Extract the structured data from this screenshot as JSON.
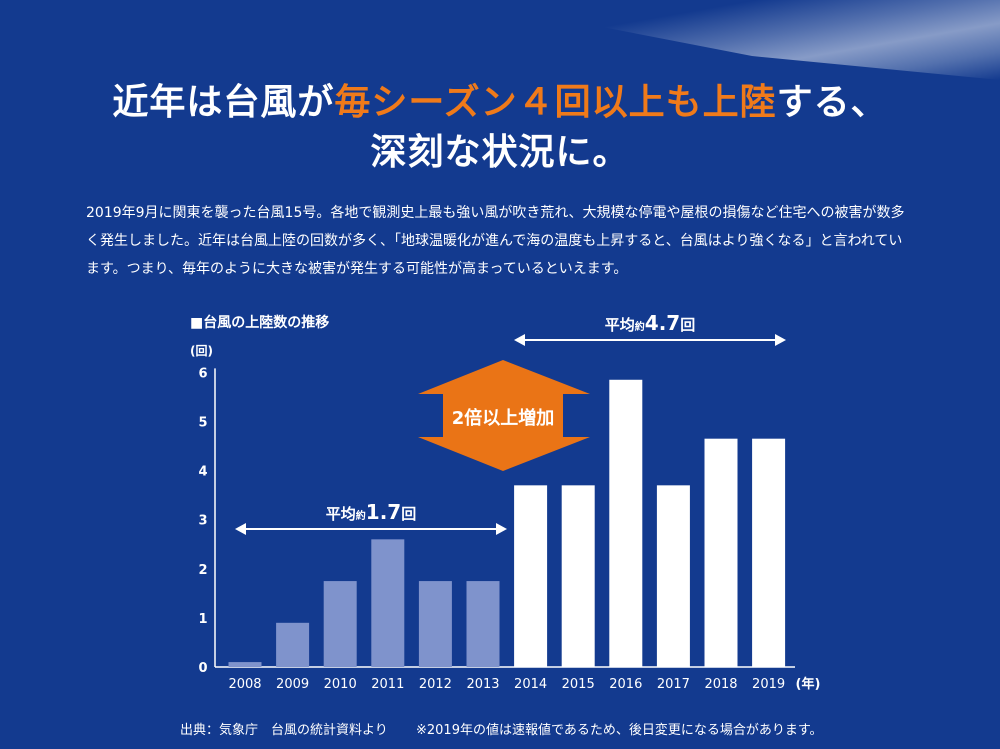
{
  "headline": {
    "line1_pre": "近年は台風が",
    "line1_highlight": "毎シーズン４回以上も上陸",
    "line1_post": "する、",
    "line2": "深刻な状況に。"
  },
  "intro": "2019年9月に関東を襲った台風15号。各地で観測史上最も強い風が吹き荒れ、大規模な停電や屋根の損傷など住宅への被害が数多く発生しました。近年は台風上陸の回数が多く、「地球温暖化が進んで海の温度も上昇すると、台風はより強くなる」と言われています。つまり、毎年のように大きな被害が発生する可能性が高まっているといえます。",
  "chart_data": {
    "type": "bar",
    "title": "■台風の上陸数の推移",
    "ylabel": "(回)",
    "xlabel": "(年)",
    "ylim": [
      0,
      6
    ],
    "yticks": [
      0,
      1,
      2,
      3,
      4,
      5,
      6
    ],
    "categories": [
      "2008",
      "2009",
      "2010",
      "2011",
      "2012",
      "2013",
      "2014",
      "2015",
      "2016",
      "2017",
      "2018",
      "2019"
    ],
    "values": [
      0.1,
      0.9,
      1.75,
      2.6,
      1.75,
      1.75,
      3.7,
      3.7,
      5.85,
      3.7,
      4.65,
      4.65
    ],
    "colors": {
      "early": "#7f93cc",
      "recent": "#ffffff",
      "accent": "#ea7416"
    },
    "annotations": {
      "early_avg": {
        "pre": "平均",
        "small": "約",
        "value": "1.7",
        "unit": "回"
      },
      "recent_avg": {
        "pre": "平均",
        "small": "約",
        "value": "4.7",
        "unit": "回"
      },
      "increase": "2倍以上増加"
    }
  },
  "footer": {
    "source": "出典：気象庁　台風の統計資料より",
    "note": "※2019年の値は速報値であるため、後日変更になる場合があります。"
  }
}
